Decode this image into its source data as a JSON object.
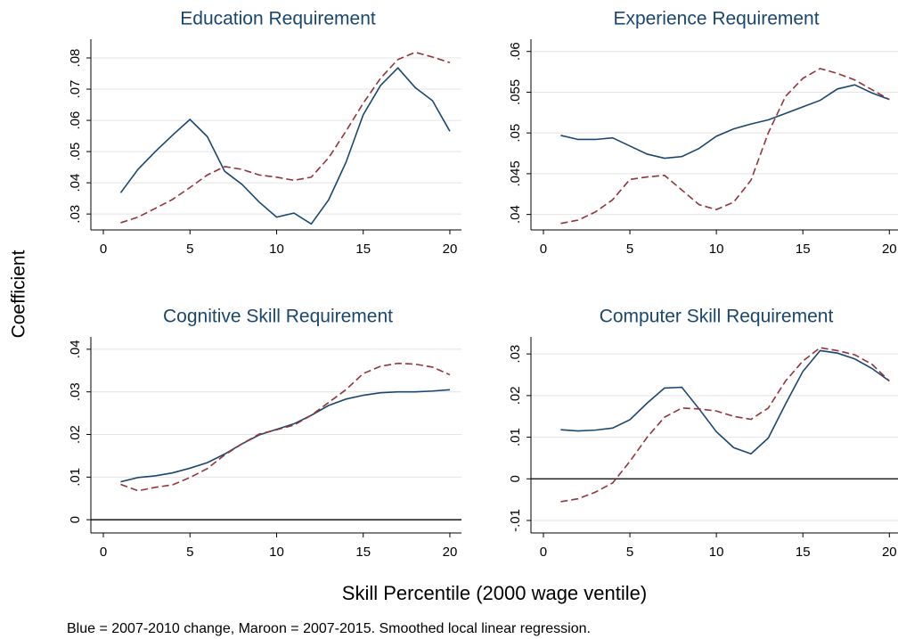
{
  "chart_data": [
    {
      "type": "line",
      "title": "Education Requirement",
      "xlim": [
        -0.72,
        20.67
      ],
      "xticks": [
        0,
        5,
        10,
        15,
        20
      ],
      "ylim": [
        0.0249,
        0.086
      ],
      "yticks": [
        {
          "value": 0.03,
          "label": ".03"
        },
        {
          "value": 0.04,
          "label": ".04"
        },
        {
          "value": 0.05,
          "label": ".05"
        },
        {
          "value": 0.06,
          "label": ".06"
        },
        {
          "value": 0.07,
          "label": ".07"
        },
        {
          "value": 0.08,
          "label": ".08"
        }
      ],
      "grid": true,
      "x": [
        1,
        2,
        3,
        4,
        5,
        6,
        7,
        8,
        9,
        10,
        11,
        12,
        13,
        14,
        15,
        16,
        17,
        18,
        19,
        20
      ],
      "series": [
        {
          "color": "#1a476f",
          "dash": false,
          "values": [
            0.0368,
            0.0443,
            0.05,
            0.0553,
            0.0603,
            0.0548,
            0.0437,
            0.0395,
            0.0338,
            0.029,
            0.0303,
            0.0268,
            0.0345,
            0.0465,
            0.0618,
            0.0712,
            0.0768,
            0.0705,
            0.0663,
            0.0565
          ]
        },
        {
          "color": "#90353b",
          "dash": true,
          "values": [
            0.0272,
            0.029,
            0.0318,
            0.0347,
            0.0385,
            0.0425,
            0.0452,
            0.0443,
            0.0425,
            0.0418,
            0.0408,
            0.0418,
            0.048,
            0.0565,
            0.0655,
            0.0735,
            0.0795,
            0.0818,
            0.0803,
            0.0785
          ]
        }
      ]
    },
    {
      "type": "line",
      "title": "Experience Requirement",
      "xlim": [
        -0.72,
        20.5
      ],
      "xticks": [
        0,
        5,
        10,
        15,
        20
      ],
      "ylim": [
        0.0381,
        0.0615
      ],
      "yticks": [
        {
          "value": 0.04,
          "label": ".04"
        },
        {
          "value": 0.045,
          "label": ".045"
        },
        {
          "value": 0.05,
          "label": ".05"
        },
        {
          "value": 0.055,
          "label": ".055"
        },
        {
          "value": 0.06,
          "label": ".06"
        }
      ],
      "grid": true,
      "x": [
        1,
        2,
        3,
        4,
        5,
        6,
        7,
        8,
        9,
        10,
        11,
        12,
        13,
        14,
        15,
        16,
        17,
        18,
        19,
        20
      ],
      "series": [
        {
          "color": "#1a476f",
          "dash": false,
          "values": [
            0.0497,
            0.0492,
            0.0492,
            0.0494,
            0.0484,
            0.0474,
            0.0469,
            0.0471,
            0.0481,
            0.0496,
            0.0505,
            0.0511,
            0.0516,
            0.0524,
            0.0532,
            0.054,
            0.0554,
            0.0559,
            0.0549,
            0.0541
          ]
        },
        {
          "color": "#90353b",
          "dash": true,
          "values": [
            0.0389,
            0.0393,
            0.0403,
            0.0418,
            0.0443,
            0.0446,
            0.0448,
            0.043,
            0.0412,
            0.0406,
            0.0415,
            0.0442,
            0.05,
            0.0545,
            0.0567,
            0.0579,
            0.0573,
            0.0565,
            0.0553,
            0.0541
          ]
        }
      ]
    },
    {
      "type": "line",
      "title": "Cognitive Skill Requirement",
      "xlim": [
        -0.72,
        20.67
      ],
      "xticks": [
        0,
        5,
        10,
        15,
        20
      ],
      "ylim": [
        -0.0031,
        0.0429
      ],
      "yticks": [
        0,
        {
          "value": 0.01,
          "label": ".01"
        },
        {
          "value": 0.02,
          "label": ".02"
        },
        {
          "value": 0.03,
          "label": ".03"
        },
        {
          "value": 0.04,
          "label": ".04"
        }
      ],
      "grid": true,
      "hline": 0,
      "x": [
        1,
        2,
        3,
        4,
        5,
        6,
        7,
        8,
        9,
        10,
        11,
        12,
        13,
        14,
        15,
        16,
        17,
        18,
        19,
        20
      ],
      "series": [
        {
          "color": "#1a476f",
          "dash": false,
          "values": [
            0.0089,
            0.0099,
            0.0103,
            0.011,
            0.0121,
            0.0134,
            0.0154,
            0.0178,
            0.0199,
            0.0212,
            0.0225,
            0.0245,
            0.0268,
            0.0283,
            0.0292,
            0.0298,
            0.03,
            0.03,
            0.0302,
            0.0305
          ]
        },
        {
          "color": "#90353b",
          "dash": true,
          "values": [
            0.0083,
            0.0068,
            0.0076,
            0.0082,
            0.0099,
            0.012,
            0.0152,
            0.0178,
            0.0201,
            0.0211,
            0.0222,
            0.0245,
            0.0275,
            0.0305,
            0.0343,
            0.036,
            0.0367,
            0.0365,
            0.0358,
            0.034
          ]
        }
      ]
    },
    {
      "type": "line",
      "title": "Computer Skill Requirement",
      "xlim": [
        -0.72,
        20.5
      ],
      "xticks": [
        0,
        5,
        10,
        15,
        20
      ],
      "ylim": [
        -0.013,
        0.0341
      ],
      "yticks": [
        {
          "value": -0.01,
          "label": "-.01"
        },
        0,
        {
          "value": 0.01,
          "label": ".01"
        },
        {
          "value": 0.02,
          "label": ".02"
        },
        {
          "value": 0.03,
          "label": ".03"
        }
      ],
      "grid": true,
      "hline": 0,
      "x": [
        1,
        2,
        3,
        4,
        5,
        6,
        7,
        8,
        9,
        10,
        11,
        12,
        13,
        14,
        15,
        16,
        17,
        18,
        19,
        20
      ],
      "series": [
        {
          "color": "#1a476f",
          "dash": false,
          "values": [
            0.0118,
            0.0115,
            0.0117,
            0.0122,
            0.0142,
            0.0182,
            0.0218,
            0.022,
            0.0168,
            0.0113,
            0.0075,
            0.006,
            0.0098,
            0.018,
            0.0258,
            0.0308,
            0.0302,
            0.0288,
            0.0265,
            0.0235
          ]
        },
        {
          "color": "#90353b",
          "dash": true,
          "values": [
            -0.0055,
            -0.0048,
            -0.0032,
            -0.001,
            0.0042,
            0.01,
            0.0148,
            0.017,
            0.0168,
            0.0163,
            0.015,
            0.0143,
            0.017,
            0.0235,
            0.0283,
            0.0315,
            0.0308,
            0.0298,
            0.0275,
            0.0235
          ]
        }
      ]
    }
  ],
  "ylabel": "Coefficient",
  "xlabel": "Skill Percentile (2000 wage ventile)",
  "note": "Blue = 2007-2010 change, Maroon = 2007-2015. Smoothed local linear regression."
}
